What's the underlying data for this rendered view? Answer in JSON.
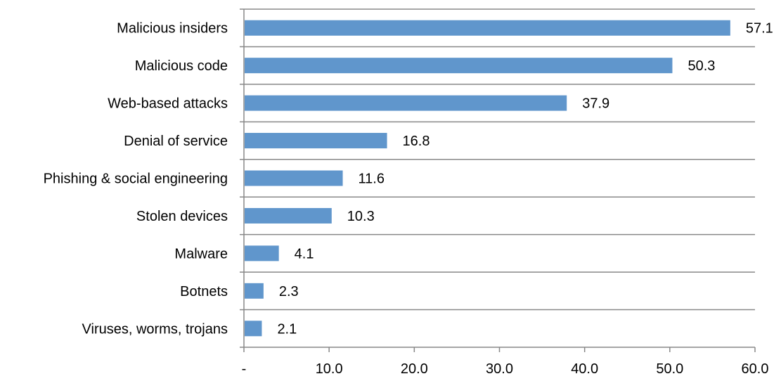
{
  "chart_data": {
    "type": "bar",
    "orientation": "horizontal",
    "categories": [
      "Malicious insiders",
      "Malicious code",
      "Web-based attacks",
      "Denial of service",
      "Phishing & social engineering",
      "Stolen devices",
      "Malware",
      "Botnets",
      "Viruses, worms, trojans"
    ],
    "values": [
      57.1,
      50.3,
      37.9,
      16.8,
      11.6,
      10.3,
      4.1,
      2.3,
      2.1
    ],
    "value_labels": [
      "57.1",
      "50.3",
      "37.9",
      "16.8",
      "11.6",
      "10.3",
      "4.1",
      "2.3",
      "2.1"
    ],
    "xlim": [
      0,
      60
    ],
    "x_ticks": [
      0,
      10,
      20,
      30,
      40,
      50,
      60
    ],
    "x_tick_labels": [
      "-",
      "10.0",
      "20.0",
      "30.0",
      "40.0",
      "50.0",
      "60.0"
    ],
    "grid": "horizontal separators between categories",
    "legend": "none",
    "bar_color": "#6096CC",
    "axis_color": "#888888",
    "grid_color": "#888888",
    "title": "",
    "xlabel": "",
    "ylabel": ""
  }
}
